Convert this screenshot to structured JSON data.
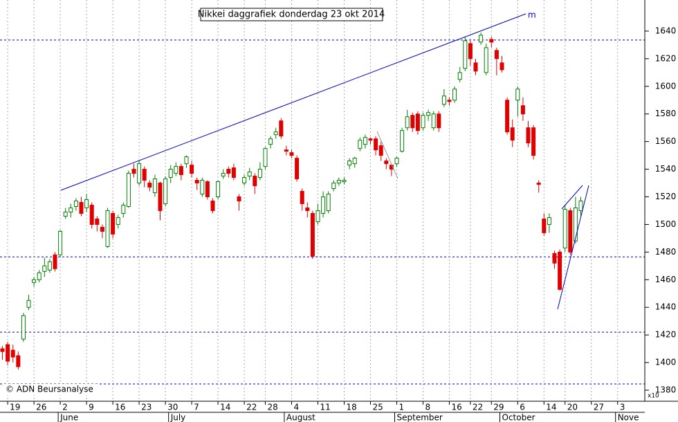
{
  "chart_data": {
    "type": "candlestick",
    "title": "Nikkei daggrafiek donderdag 23 okt 2014",
    "credit": "© ADN Beursanalyse",
    "annotation": "m",
    "axis_multiplier": "x10",
    "months": [
      "June",
      "July",
      "August",
      "September",
      "October",
      "Nove"
    ],
    "categories": [
      null,
      "19",
      null,
      null,
      null,
      null,
      "26",
      null,
      null,
      null,
      null,
      "2",
      null,
      null,
      null,
      null,
      "9",
      null,
      null,
      null,
      null,
      "16",
      null,
      null,
      null,
      null,
      "23",
      null,
      null,
      null,
      null,
      "30",
      null,
      null,
      null,
      null,
      "7",
      null,
      null,
      null,
      null,
      "14",
      null,
      null,
      null,
      null,
      "22",
      null,
      null,
      null,
      "28",
      null,
      null,
      null,
      null,
      "4",
      null,
      null,
      null,
      null,
      "11",
      null,
      null,
      null,
      null,
      "18",
      null,
      null,
      null,
      null,
      "25",
      null,
      null,
      null,
      null,
      "1",
      null,
      null,
      null,
      null,
      "8",
      null,
      null,
      null,
      null,
      "16",
      null,
      null,
      null,
      "22",
      null,
      null,
      null,
      "29",
      null,
      null,
      null,
      null,
      "6",
      null,
      null,
      null,
      null,
      "14",
      null,
      null,
      null,
      "20",
      null,
      null,
      null,
      null,
      "27",
      null,
      null,
      null,
      null,
      "3",
      null,
      null,
      null,
      null
    ],
    "open": [
      1410,
      1413,
      1409,
      1405,
      1417,
      1440,
      1458,
      1460,
      1466,
      1467,
      1478,
      1478,
      1506,
      1509,
      1513,
      1516,
      1512,
      1514,
      1504,
      1498,
      1484,
      1508,
      1500,
      1508,
      1513,
      1540,
      1530,
      1540,
      1530,
      1523,
      1530,
      1515,
      1534,
      1537,
      1542,
      1544,
      1543,
      1532,
      1522,
      1531,
      1517,
      1520,
      1535,
      1540,
      1541,
      1520,
      1530,
      1535,
      1535,
      1534,
      1542,
      1558,
      1565,
      1575,
      1554,
      1552,
      1548,
      1524,
      1512,
      1508,
      1502,
      1508,
      1510,
      1526,
      1530,
      1531,
      1543,
      1544,
      1555,
      1558,
      1562,
      1562,
      1557,
      1546,
      1543,
      1544,
      1553,
      1570,
      1579,
      1580,
      1570,
      1579,
      1570,
      1580,
      1587,
      1590,
      1590,
      1605,
      1613,
      1631,
      1617,
      1632,
      1610,
      1634,
      1626,
      1617,
      1590,
      1570,
      1590,
      1586,
      1570,
      1570,
      1530,
      1504,
      1500,
      1479,
      1480,
      1483,
      1510,
      1488,
      1510,
      null,
      null,
      null,
      null,
      null,
      null,
      null,
      null,
      null,
      null,
      null
    ],
    "high": [
      1412,
      1415,
      1413,
      1408,
      1436,
      1449,
      1462,
      1467,
      1476,
      1475,
      1480,
      1496,
      1512,
      1515,
      1519,
      1520,
      1522,
      1516,
      1506,
      1500,
      1512,
      1510,
      1507,
      1516,
      1539,
      1544,
      1546,
      1542,
      1532,
      1536,
      1531,
      1535,
      1543,
      1545,
      1544,
      1550,
      1546,
      1534,
      1534,
      1532,
      1519,
      1532,
      1540,
      1542,
      1544,
      1522,
      1536,
      1541,
      1537,
      1545,
      1556,
      1564,
      1570,
      1577,
      1557,
      1554,
      1550,
      1526,
      1516,
      1510,
      1515,
      1524,
      1524,
      1532,
      1534,
      1534,
      1548,
      1549,
      1563,
      1565,
      1563,
      1564,
      1560,
      1548,
      1544,
      1549,
      1570,
      1583,
      1581,
      1582,
      1581,
      1583,
      1582,
      1582,
      1598,
      1592,
      1600,
      1614,
      1636,
      1633,
      1620,
      1639,
      1631,
      1636,
      1628,
      1622,
      1592,
      1576,
      1600,
      1592,
      1575,
      1572,
      1532,
      1508,
      1508,
      1481,
      1482,
      1514,
      1512,
      1520,
      1520,
      null,
      null,
      null,
      null,
      null,
      null,
      null,
      null,
      null,
      null,
      null
    ],
    "low": [
      1402,
      1398,
      1400,
      1395,
      1415,
      1438,
      1455,
      1458,
      1462,
      1465,
      1466,
      1476,
      1504,
      1505,
      1510,
      1506,
      1509,
      1497,
      1495,
      1490,
      1483,
      1490,
      1497,
      1505,
      1512,
      1534,
      1528,
      1527,
      1524,
      1520,
      1503,
      1513,
      1530,
      1535,
      1532,
      1541,
      1534,
      1525,
      1520,
      1518,
      1508,
      1518,
      1533,
      1534,
      1532,
      1510,
      1528,
      1532,
      1522,
      1532,
      1540,
      1555,
      1562,
      1562,
      1550,
      1548,
      1531,
      1510,
      1505,
      1475,
      1500,
      1505,
      1508,
      1524,
      1528,
      1529,
      1540,
      1541,
      1553,
      1555,
      1558,
      1550,
      1546,
      1540,
      1535,
      1542,
      1552,
      1568,
      1567,
      1565,
      1568,
      1575,
      1568,
      1567,
      1585,
      1586,
      1588,
      1603,
      1611,
      1615,
      1608,
      1630,
      1608,
      1628,
      1608,
      1610,
      1565,
      1556,
      1578,
      1575,
      1556,
      1547,
      1523,
      1492,
      1494,
      1468,
      1452,
      1480,
      1478,
      1486,
      1506,
      null,
      null,
      null,
      null,
      null,
      null,
      null,
      null,
      null,
      null,
      null
    ],
    "close": [
      1408,
      1401,
      1404,
      1397,
      1434,
      1445,
      1460,
      1465,
      1470,
      1473,
      1468,
      1495,
      1509,
      1512,
      1517,
      1508,
      1518,
      1500,
      1500,
      1495,
      1510,
      1493,
      1505,
      1514,
      1537,
      1537,
      1544,
      1532,
      1527,
      1533,
      1510,
      1533,
      1540,
      1542,
      1536,
      1549,
      1537,
      1530,
      1532,
      1520,
      1510,
      1531,
      1537,
      1537,
      1534,
      1517,
      1534,
      1538,
      1528,
      1540,
      1555,
      1562,
      1567,
      1564,
      1553,
      1550,
      1533,
      1515,
      1510,
      1477,
      1510,
      1520,
      1522,
      1530,
      1532,
      1532,
      1546,
      1548,
      1561,
      1563,
      1561,
      1554,
      1550,
      1544,
      1540,
      1548,
      1568,
      1578,
      1570,
      1568,
      1579,
      1581,
      1580,
      1570,
      1593,
      1589,
      1598,
      1610,
      1633,
      1620,
      1611,
      1637,
      1628,
      1632,
      1620,
      1612,
      1567,
      1561,
      1598,
      1580,
      1559,
      1550,
      1529,
      1494,
      1505,
      1472,
      1453,
      1511,
      1480,
      1512,
      1517,
      null,
      null,
      null,
      null,
      null,
      null,
      null,
      null,
      null,
      null,
      null
    ],
    "up_color": "#008000",
    "down_color": "#e00000",
    "hlines": [
      1633.5,
      1476.5,
      1422,
      1384.5
    ],
    "hline_color": "#0000c0",
    "ylim": [
      1372,
      1662.5
    ],
    "yticks": [
      1380,
      1400,
      1420,
      1440,
      1460,
      1480,
      1500,
      1520,
      1540,
      1560,
      1580,
      1600,
      1620,
      1640
    ],
    "grid": true
  }
}
